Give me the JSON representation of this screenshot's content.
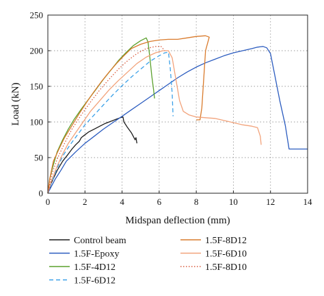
{
  "chart_data": {
    "type": "line",
    "title": "",
    "xlabel": "Midspan deflection (mm)",
    "ylabel": "Load (kN)",
    "xlim": [
      0,
      14
    ],
    "ylim": [
      0,
      250
    ],
    "xticks": [
      0,
      2,
      4,
      6,
      8,
      10,
      12,
      14
    ],
    "yticks": [
      0,
      50,
      100,
      150,
      200,
      250
    ],
    "xtick_labels": [
      "0",
      "2",
      "4",
      "6",
      "8",
      "10",
      "12",
      "14"
    ],
    "ytick_labels": [
      "0",
      "50",
      "100",
      "150",
      "200",
      "250"
    ],
    "grid": "dotted",
    "legend_position": "bottom, two columns",
    "series": [
      {
        "name": "Control beam",
        "color": "#1a1a1a",
        "dash": "solid",
        "points": [
          [
            0,
            0
          ],
          [
            0.2,
            15
          ],
          [
            0.5,
            32
          ],
          [
            0.8,
            45
          ],
          [
            1.1,
            55
          ],
          [
            1.3,
            62
          ],
          [
            1.5,
            68
          ],
          [
            1.7,
            73
          ],
          [
            1.8,
            78
          ],
          [
            2.0,
            82
          ],
          [
            2.2,
            86
          ],
          [
            2.5,
            90
          ],
          [
            2.8,
            94
          ],
          [
            3.1,
            98
          ],
          [
            3.4,
            101
          ],
          [
            3.7,
            104
          ],
          [
            3.9,
            106
          ],
          [
            4.05,
            107
          ],
          [
            4.1,
            100
          ],
          [
            4.3,
            92
          ],
          [
            4.5,
            85
          ],
          [
            4.6,
            80
          ],
          [
            4.7,
            75
          ],
          [
            4.75,
            78
          ],
          [
            4.8,
            70
          ]
        ]
      },
      {
        "name": "1.5F-Epoxy",
        "color": "#2a5bbf",
        "dash": "solid",
        "points": [
          [
            0,
            0
          ],
          [
            0.2,
            10
          ],
          [
            0.4,
            20
          ],
          [
            0.7,
            32
          ],
          [
            1.0,
            45
          ],
          [
            1.5,
            58
          ],
          [
            2.0,
            70
          ],
          [
            2.5,
            80
          ],
          [
            3.0,
            90
          ],
          [
            3.5,
            99
          ],
          [
            4.0,
            108
          ],
          [
            4.5,
            117
          ],
          [
            5.0,
            126
          ],
          [
            5.5,
            135
          ],
          [
            6.0,
            144
          ],
          [
            6.5,
            153
          ],
          [
            7.0,
            162
          ],
          [
            7.5,
            170
          ],
          [
            8.0,
            177
          ],
          [
            8.5,
            183
          ],
          [
            9.0,
            188
          ],
          [
            9.5,
            193
          ],
          [
            10.0,
            197
          ],
          [
            10.5,
            200
          ],
          [
            11.0,
            203
          ],
          [
            11.3,
            205
          ],
          [
            11.6,
            206
          ],
          [
            11.8,
            204
          ],
          [
            12.0,
            196
          ],
          [
            12.2,
            170
          ],
          [
            12.5,
            130
          ],
          [
            12.8,
            95
          ],
          [
            13.0,
            62
          ],
          [
            13.2,
            62
          ],
          [
            14.0,
            62
          ]
        ]
      },
      {
        "name": "1.5F-4D12",
        "color": "#5aa02c",
        "dash": "solid",
        "points": [
          [
            0,
            0
          ],
          [
            0.1,
            20
          ],
          [
            0.3,
            40
          ],
          [
            0.5,
            58
          ],
          [
            0.8,
            75
          ],
          [
            1.1,
            90
          ],
          [
            1.4,
            103
          ],
          [
            1.8,
            118
          ],
          [
            2.2,
            132
          ],
          [
            2.6,
            146
          ],
          [
            3.0,
            160
          ],
          [
            3.4,
            173
          ],
          [
            3.8,
            186
          ],
          [
            4.2,
            197
          ],
          [
            4.6,
            207
          ],
          [
            5.0,
            214
          ],
          [
            5.3,
            218
          ],
          [
            5.4,
            212
          ],
          [
            5.5,
            190
          ],
          [
            5.6,
            165
          ],
          [
            5.7,
            145
          ],
          [
            5.75,
            133
          ]
        ]
      },
      {
        "name": "1.5F-6D12",
        "color": "#3aa0e8",
        "dash": "dashed",
        "points": [
          [
            0,
            0
          ],
          [
            0.2,
            15
          ],
          [
            0.5,
            35
          ],
          [
            0.8,
            52
          ],
          [
            1.2,
            68
          ],
          [
            1.6,
            82
          ],
          [
            2.0,
            96
          ],
          [
            2.5,
            110
          ],
          [
            3.0,
            124
          ],
          [
            3.5,
            138
          ],
          [
            4.0,
            151
          ],
          [
            4.5,
            163
          ],
          [
            5.0,
            174
          ],
          [
            5.5,
            185
          ],
          [
            6.0,
            193
          ],
          [
            6.3,
            197
          ],
          [
            6.5,
            198
          ],
          [
            6.6,
            175
          ],
          [
            6.7,
            140
          ],
          [
            6.75,
            108
          ]
        ]
      },
      {
        "name": "1.5F-8D12",
        "color": "#d97a2b",
        "dash": "solid",
        "points": [
          [
            0,
            0
          ],
          [
            0.1,
            20
          ],
          [
            0.3,
            45
          ],
          [
            0.6,
            62
          ],
          [
            0.9,
            78
          ],
          [
            1.3,
            95
          ],
          [
            1.7,
            112
          ],
          [
            2.1,
            128
          ],
          [
            2.5,
            143
          ],
          [
            2.9,
            157
          ],
          [
            3.3,
            170
          ],
          [
            3.7,
            182
          ],
          [
            4.1,
            193
          ],
          [
            4.5,
            203
          ],
          [
            5.0,
            209
          ],
          [
            5.5,
            213
          ],
          [
            6.0,
            215
          ],
          [
            6.5,
            216
          ],
          [
            7.0,
            216
          ],
          [
            7.5,
            218
          ],
          [
            8.0,
            220
          ],
          [
            8.5,
            221
          ],
          [
            8.7,
            219
          ],
          [
            8.5,
            200
          ],
          [
            8.4,
            160
          ],
          [
            8.3,
            120
          ],
          [
            8.2,
            103
          ],
          [
            8.0,
            103
          ]
        ]
      },
      {
        "name": "1.5F-6D10",
        "color": "#f2a27a",
        "dash": "solid",
        "points": [
          [
            0,
            0
          ],
          [
            0.2,
            18
          ],
          [
            0.5,
            38
          ],
          [
            0.8,
            55
          ],
          [
            1.1,
            70
          ],
          [
            1.5,
            85
          ],
          [
            1.9,
            100
          ],
          [
            2.3,
            115
          ],
          [
            2.8,
            130
          ],
          [
            3.3,
            145
          ],
          [
            3.8,
            158
          ],
          [
            4.3,
            170
          ],
          [
            4.8,
            182
          ],
          [
            5.3,
            191
          ],
          [
            5.8,
            197
          ],
          [
            6.2,
            200
          ],
          [
            6.5,
            200
          ],
          [
            6.7,
            190
          ],
          [
            6.9,
            160
          ],
          [
            7.1,
            130
          ],
          [
            7.3,
            115
          ],
          [
            7.6,
            110
          ],
          [
            8.0,
            107
          ],
          [
            8.5,
            106
          ],
          [
            9.0,
            105
          ],
          [
            9.5,
            102
          ],
          [
            10.0,
            99
          ],
          [
            10.5,
            96
          ],
          [
            11.0,
            94
          ],
          [
            11.3,
            92
          ],
          [
            11.45,
            80
          ],
          [
            11.5,
            68
          ]
        ]
      },
      {
        "name": "1.5F-8D10",
        "color": "#d95b3c",
        "dash": "dotted",
        "points": [
          [
            0,
            0
          ],
          [
            0.2,
            25
          ],
          [
            0.5,
            48
          ],
          [
            0.9,
            70
          ],
          [
            1.3,
            90
          ],
          [
            1.8,
            110
          ],
          [
            2.3,
            128
          ],
          [
            2.8,
            145
          ],
          [
            3.3,
            160
          ],
          [
            3.8,
            174
          ],
          [
            4.3,
            186
          ],
          [
            4.8,
            196
          ],
          [
            5.3,
            203
          ],
          [
            5.8,
            206
          ],
          [
            6.1,
            206
          ],
          [
            6.3,
            200
          ]
        ]
      }
    ]
  }
}
